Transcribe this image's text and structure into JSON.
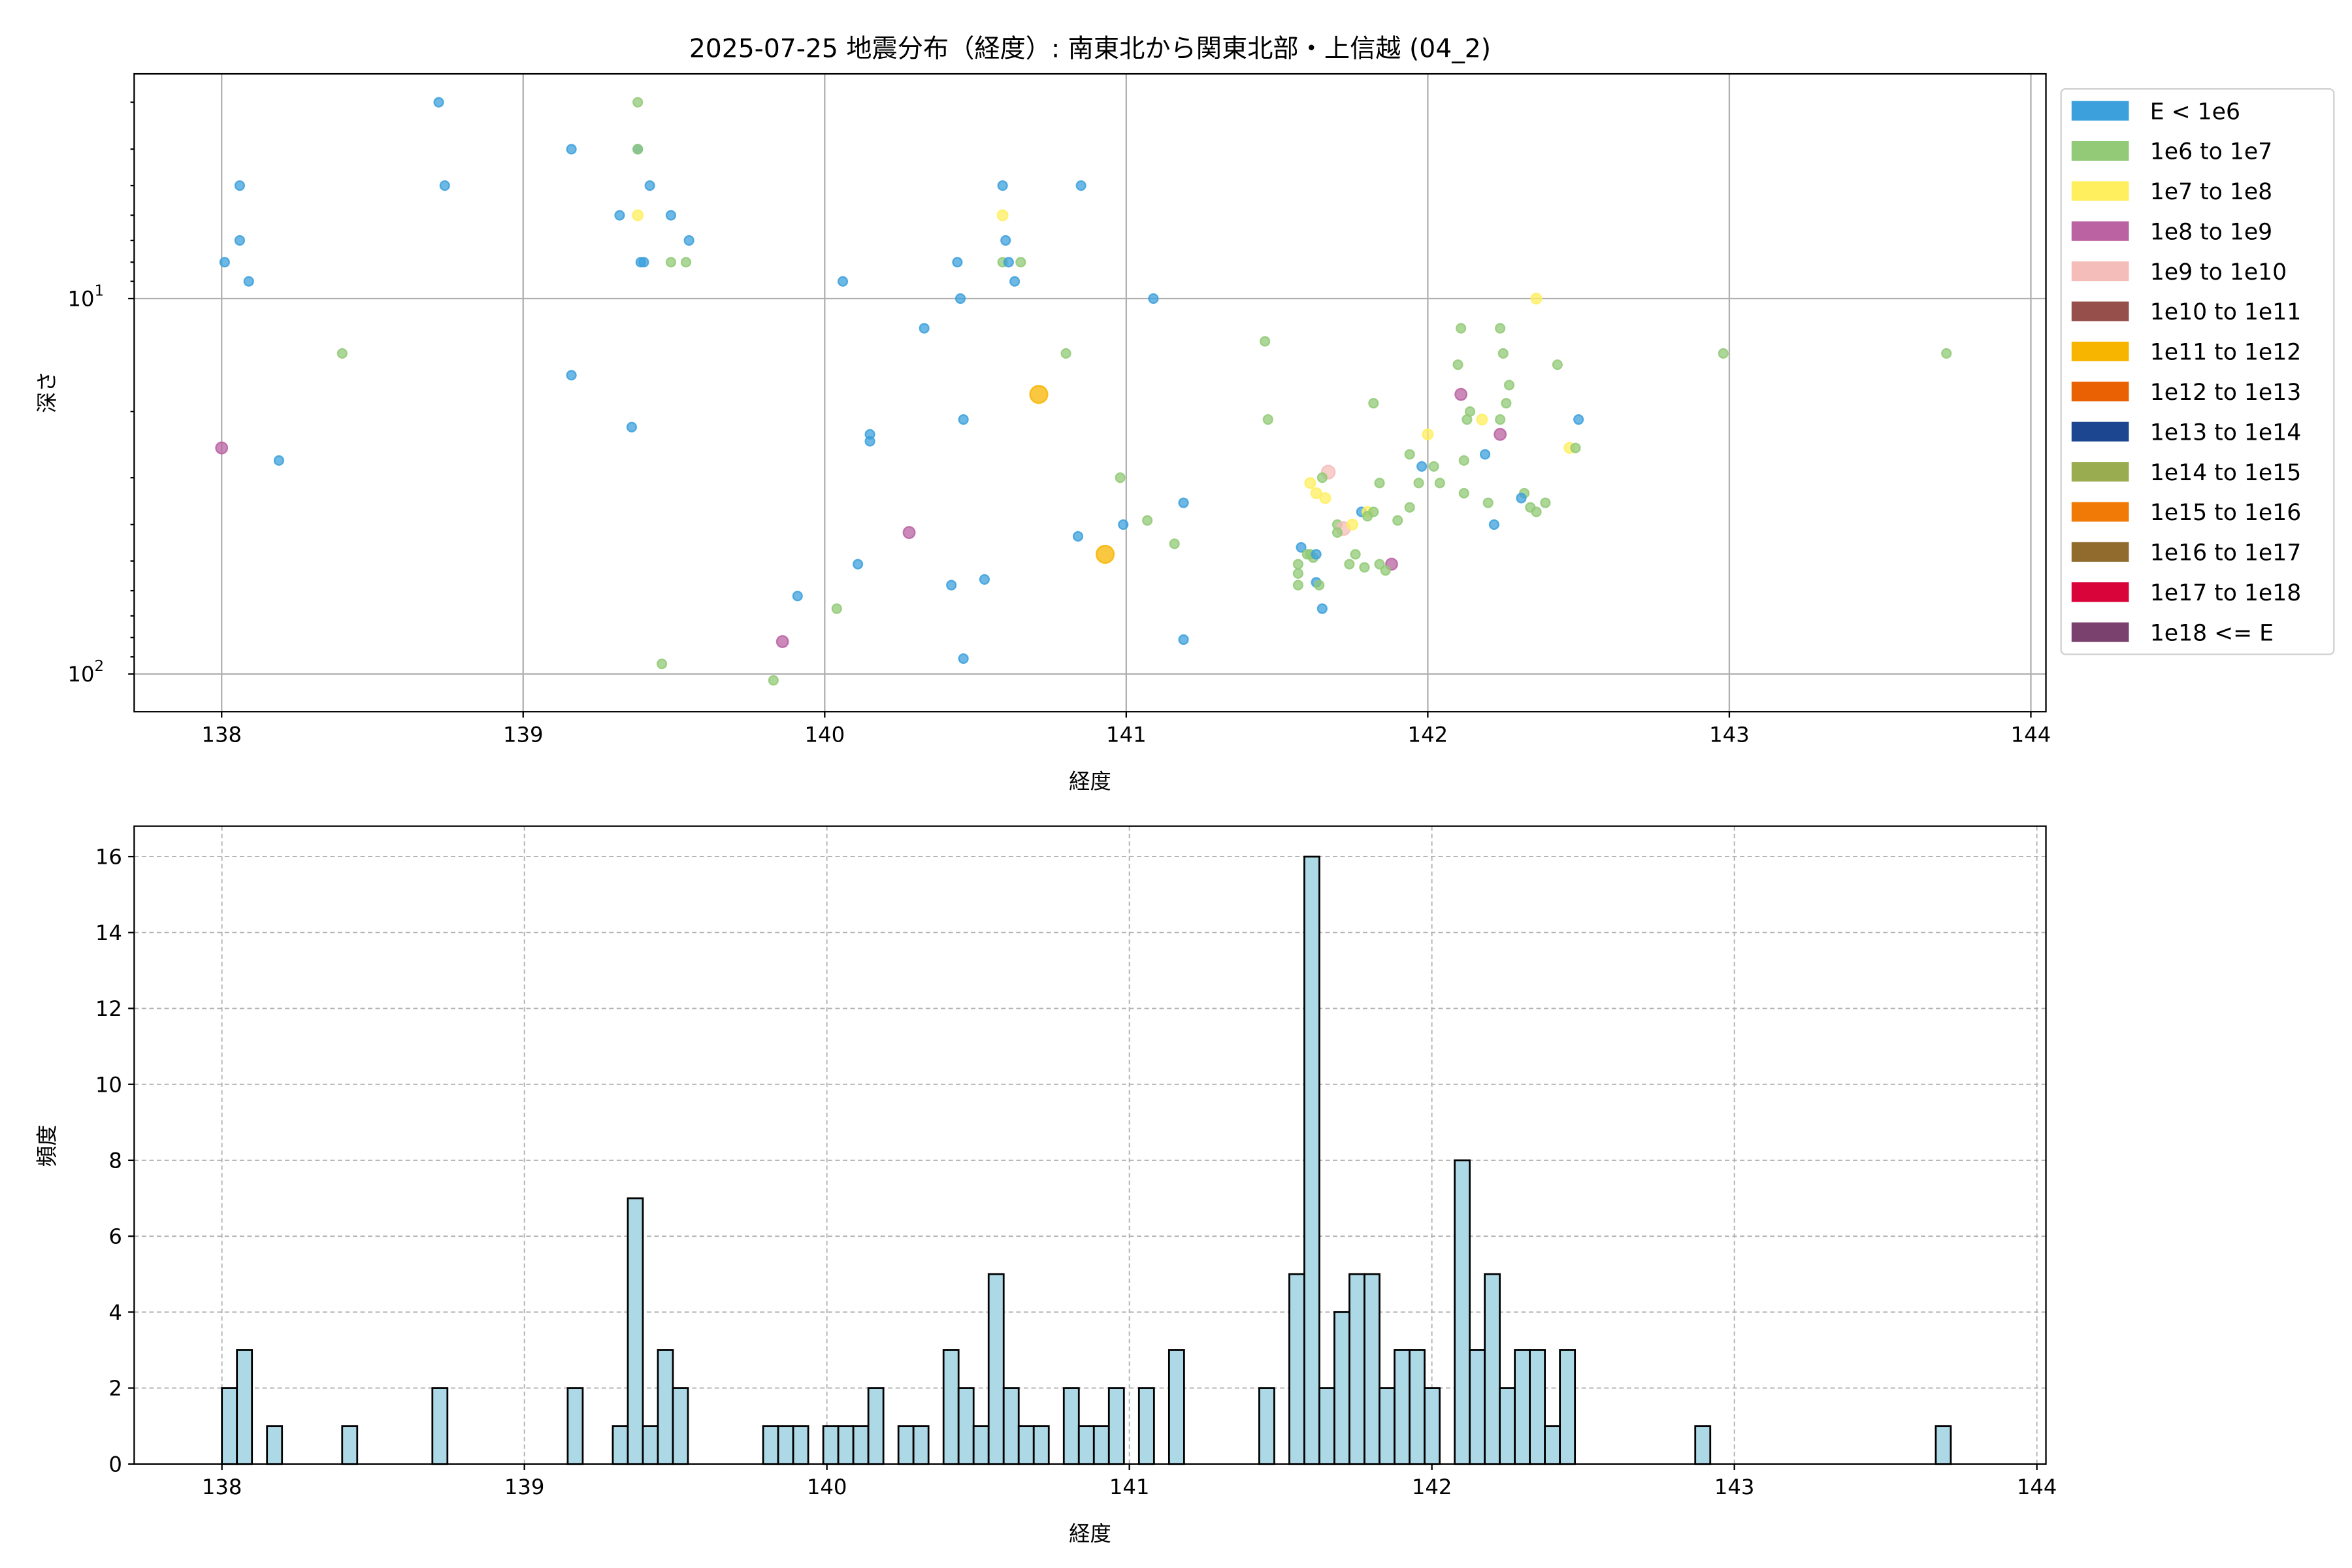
{
  "chart_data": [
    {
      "type": "scatter",
      "title": "2025-07-25 地震分布（経度）: 南東北から関東北部・上信越 (04_2)",
      "xlabel": "経度",
      "ylabel": "深さ",
      "xlim": [
        137.71,
        144.05
      ],
      "ylim": [
        126,
        2.52
      ],
      "yscale": "log",
      "y_inverted": true,
      "x_ticks": [
        "138",
        "139",
        "140",
        "141",
        "142",
        "143",
        "144"
      ],
      "y_ticks": [
        {
          "value": 10,
          "base": "10",
          "exp": "1"
        },
        {
          "value": 100,
          "base": "10",
          "exp": "2"
        }
      ],
      "grid": true,
      "legend_placement": "outside-right",
      "legend": [
        {
          "label": "E < 1e6",
          "color": "#3CA0DC"
        },
        {
          "label": "1e6 to 1e7",
          "color": "#92CA77"
        },
        {
          "label": "1e7 to 1e8",
          "color": "#FFEF5F"
        },
        {
          "label": "1e8 to 1e9",
          "color": "#BA62A2"
        },
        {
          "label": "1e9 to 1e10",
          "color": "#F5BDBA"
        },
        {
          "label": "1e10 to 1e11",
          "color": "#964F4B"
        },
        {
          "label": "1e11 to 1e12",
          "color": "#F7B500"
        },
        {
          "label": "1e12 to 1e13",
          "color": "#EA6103"
        },
        {
          "label": "1e13 to 1e14",
          "color": "#1C4790"
        },
        {
          "label": "1e14 to 1e15",
          "color": "#9AAC50"
        },
        {
          "label": "1e15 to 1e16",
          "color": "#F07A05"
        },
        {
          "label": "1e16 to 1e17",
          "color": "#916B2E"
        },
        {
          "label": "1e17 to 1e18",
          "color": "#D8043A"
        },
        {
          "label": "1e18 <= E",
          "color": "#7A416F"
        }
      ],
      "point_fields": [
        "longitude",
        "depth",
        "energy_class_index"
      ],
      "points": [
        [
          138.72,
          3,
          0
        ],
        [
          139.38,
          3,
          1
        ],
        [
          139.16,
          4,
          0
        ],
        [
          139.38,
          4,
          0
        ],
        [
          139.38,
          4,
          1
        ],
        [
          138.06,
          5,
          0
        ],
        [
          138.74,
          5,
          0
        ],
        [
          139.42,
          5,
          0
        ],
        [
          139.32,
          6,
          0
        ],
        [
          139.38,
          6,
          2
        ],
        [
          139.49,
          6,
          0
        ],
        [
          138.06,
          7,
          0
        ],
        [
          139.55,
          7,
          0
        ],
        [
          138.01,
          8,
          0
        ],
        [
          139.39,
          8,
          0
        ],
        [
          139.4,
          8,
          0
        ],
        [
          139.49,
          8,
          1
        ],
        [
          139.54,
          8,
          1
        ],
        [
          138.09,
          9,
          0
        ],
        [
          138.4,
          14,
          1
        ],
        [
          139.16,
          16,
          0
        ],
        [
          139.36,
          22,
          0
        ],
        [
          138.0,
          25,
          3
        ],
        [
          138.19,
          27,
          0
        ],
        [
          139.86,
          82,
          3
        ],
        [
          139.46,
          94,
          1
        ],
        [
          139.83,
          104,
          1
        ],
        [
          139.91,
          62,
          0
        ],
        [
          140.04,
          67,
          1
        ],
        [
          140.11,
          51,
          0
        ],
        [
          140.28,
          42,
          3
        ],
        [
          140.06,
          9,
          0
        ],
        [
          140.44,
          8,
          0
        ],
        [
          140.45,
          10,
          0
        ],
        [
          140.33,
          12,
          0
        ],
        [
          140.59,
          5,
          0
        ],
        [
          140.59,
          6,
          2
        ],
        [
          140.6,
          7,
          0
        ],
        [
          140.59,
          8,
          1
        ],
        [
          140.61,
          8,
          0
        ],
        [
          140.65,
          8,
          1
        ],
        [
          140.63,
          9,
          0
        ],
        [
          140.85,
          5,
          0
        ],
        [
          140.8,
          14,
          1
        ],
        [
          140.71,
          18,
          6
        ],
        [
          140.46,
          21,
          0
        ],
        [
          140.15,
          23,
          0
        ],
        [
          140.15,
          24,
          0
        ],
        [
          140.98,
          30,
          1
        ],
        [
          141.19,
          35,
          0
        ],
        [
          140.99,
          40,
          0
        ],
        [
          141.07,
          39,
          1
        ],
        [
          141.16,
          45,
          1
        ],
        [
          140.84,
          43,
          0
        ],
        [
          140.93,
          48,
          6
        ],
        [
          140.42,
          58,
          0
        ],
        [
          140.53,
          56,
          0
        ],
        [
          140.46,
          91,
          0
        ],
        [
          141.19,
          81,
          0
        ],
        [
          141.09,
          10,
          0
        ],
        [
          141.46,
          13,
          1
        ],
        [
          141.47,
          21,
          1
        ],
        [
          142.36,
          10,
          2
        ],
        [
          142.11,
          12,
          1
        ],
        [
          142.24,
          12,
          1
        ],
        [
          142.25,
          14,
          1
        ],
        [
          142.1,
          15,
          1
        ],
        [
          142.43,
          15,
          1
        ],
        [
          142.27,
          17,
          1
        ],
        [
          142.11,
          18,
          3
        ],
        [
          142.26,
          19,
          1
        ],
        [
          141.82,
          19,
          1
        ],
        [
          142.14,
          20,
          1
        ],
        [
          142.13,
          21,
          1
        ],
        [
          142.18,
          21,
          2
        ],
        [
          142.24,
          21,
          1
        ],
        [
          142.5,
          21,
          0
        ],
        [
          142.0,
          23,
          2
        ],
        [
          142.24,
          23,
          3
        ],
        [
          142.47,
          25,
          2
        ],
        [
          142.49,
          25,
          1
        ],
        [
          141.94,
          26,
          1
        ],
        [
          142.19,
          26,
          0
        ],
        [
          141.98,
          28,
          0
        ],
        [
          142.02,
          28,
          1
        ],
        [
          142.12,
          27,
          1
        ],
        [
          141.67,
          29,
          4
        ],
        [
          141.65,
          30,
          1
        ],
        [
          141.61,
          31,
          2
        ],
        [
          141.63,
          33,
          2
        ],
        [
          141.66,
          34,
          2
        ],
        [
          141.84,
          31,
          1
        ],
        [
          141.97,
          31,
          1
        ],
        [
          142.04,
          31,
          1
        ],
        [
          142.12,
          33,
          1
        ],
        [
          142.32,
          33,
          1
        ],
        [
          142.31,
          34,
          0
        ],
        [
          142.2,
          35,
          1
        ],
        [
          142.39,
          35,
          1
        ],
        [
          142.34,
          36,
          1
        ],
        [
          142.36,
          37,
          1
        ],
        [
          141.94,
          36,
          1
        ],
        [
          141.78,
          37,
          0
        ],
        [
          141.8,
          37,
          2
        ],
        [
          141.82,
          37,
          1
        ],
        [
          141.8,
          38,
          1
        ],
        [
          141.9,
          39,
          1
        ],
        [
          141.7,
          40,
          1
        ],
        [
          141.72,
          41,
          4
        ],
        [
          141.75,
          40,
          2
        ],
        [
          141.7,
          42,
          1
        ],
        [
          142.22,
          40,
          0
        ],
        [
          141.58,
          46,
          0
        ],
        [
          141.61,
          48,
          1
        ],
        [
          141.6,
          48,
          1
        ],
        [
          141.62,
          49,
          1
        ],
        [
          141.63,
          48,
          0
        ],
        [
          141.76,
          48,
          1
        ],
        [
          141.57,
          51,
          1
        ],
        [
          141.74,
          51,
          1
        ],
        [
          141.79,
          52,
          1
        ],
        [
          141.84,
          51,
          1
        ],
        [
          141.88,
          51,
          3
        ],
        [
          141.86,
          53,
          1
        ],
        [
          141.57,
          54,
          1
        ],
        [
          141.57,
          58,
          1
        ],
        [
          141.63,
          57,
          0
        ],
        [
          141.64,
          58,
          1
        ],
        [
          141.65,
          67,
          0
        ],
        [
          142.98,
          14,
          1
        ],
        [
          143.72,
          14,
          1
        ]
      ]
    },
    {
      "type": "bar",
      "subtype": "histogram",
      "xlabel": "経度",
      "ylabel": "頻度",
      "xlim": [
        137.71,
        144.03
      ],
      "ylim": [
        0,
        16.8
      ],
      "x_ticks": [
        "138",
        "139",
        "140",
        "141",
        "142",
        "143",
        "144"
      ],
      "y_ticks": [
        "0",
        "2",
        "4",
        "6",
        "8",
        "10",
        "12",
        "14",
        "16"
      ],
      "grid": true,
      "grid_style": "dashed",
      "bar_color": "#ADD8E6",
      "edge_color": "#000000",
      "bin_start": 138.0,
      "bin_width": 0.0497,
      "counts": [
        2,
        3,
        0,
        1,
        0,
        0,
        0,
        0,
        1,
        0,
        0,
        0,
        0,
        0,
        2,
        0,
        0,
        0,
        0,
        0,
        0,
        0,
        0,
        2,
        0,
        0,
        1,
        7,
        1,
        3,
        2,
        0,
        0,
        0,
        0,
        0,
        1,
        1,
        1,
        0,
        1,
        1,
        1,
        2,
        0,
        1,
        1,
        0,
        3,
        2,
        1,
        5,
        2,
        1,
        1,
        0,
        2,
        1,
        1,
        2,
        0,
        2,
        0,
        3,
        0,
        0,
        0,
        0,
        0,
        2,
        0,
        5,
        16,
        2,
        4,
        5,
        5,
        2,
        3,
        3,
        2,
        0,
        8,
        3,
        5,
        2,
        3,
        3,
        1,
        3,
        0,
        0,
        0,
        0,
        0,
        0,
        0,
        0,
        1,
        0,
        0,
        0,
        0,
        0,
        0,
        0,
        0,
        0,
        0,
        0,
        0,
        0,
        0,
        0,
        1
      ]
    }
  ]
}
